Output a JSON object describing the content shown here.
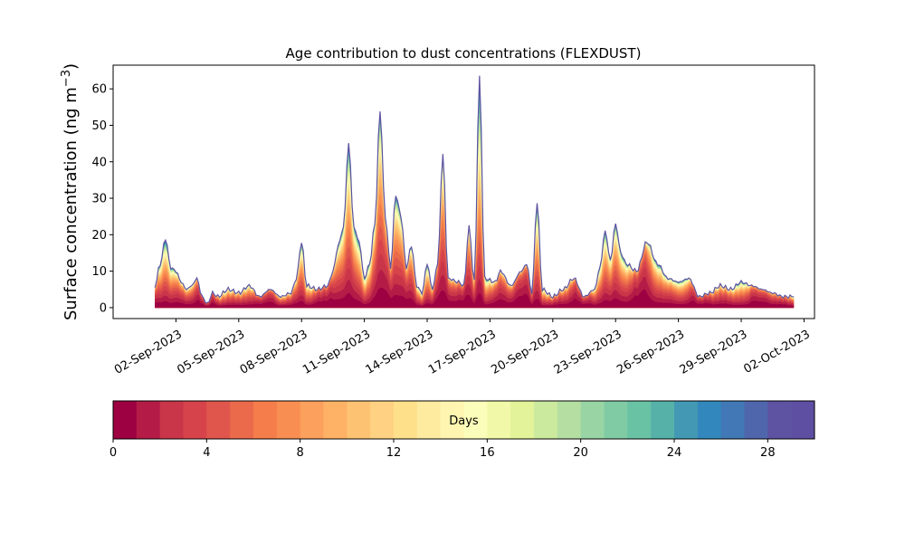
{
  "chart_data": {
    "type": "area",
    "stacked": true,
    "title": "Age contribution to dust concentrations (FLEXDUST)",
    "ylabel": "Surface concentration (ng m⁻³)",
    "xlabel": "",
    "ylim": [
      -3,
      66.5
    ],
    "yticks": [
      0,
      10,
      20,
      30,
      40,
      50,
      60
    ],
    "xlim": [
      "2023-08-30T00:00",
      "2023-10-02T12:00"
    ],
    "xticks": [
      "02-Sep-2023",
      "05-Sep-2023",
      "08-Sep-2023",
      "11-Sep-2023",
      "14-Sep-2023",
      "17-Sep-2023",
      "20-Sep-2023",
      "23-Sep-2023",
      "26-Sep-2023",
      "29-Sep-2023",
      "02-Oct-2023"
    ],
    "grid": false,
    "series_by_age_days": {
      "count": 30,
      "from": 0,
      "to": 30
    },
    "total_concentration": [
      {
        "t": "2023-09-01T00:00",
        "v": 6
      },
      {
        "t": "2023-09-01T06:00",
        "v": 12
      },
      {
        "t": "2023-09-01T12:00",
        "v": 19
      },
      {
        "t": "2023-09-01T18:00",
        "v": 11
      },
      {
        "t": "2023-09-02T00:00",
        "v": 10
      },
      {
        "t": "2023-09-02T06:00",
        "v": 7
      },
      {
        "t": "2023-09-02T12:00",
        "v": 5
      },
      {
        "t": "2023-09-02T18:00",
        "v": 6
      },
      {
        "t": "2023-09-03T00:00",
        "v": 8
      },
      {
        "t": "2023-09-03T06:00",
        "v": 3
      },
      {
        "t": "2023-09-03T12:00",
        "v": 1
      },
      {
        "t": "2023-09-03T18:00",
        "v": 4
      },
      {
        "t": "2023-09-04T00:00",
        "v": 3
      },
      {
        "t": "2023-09-04T12:00",
        "v": 5
      },
      {
        "t": "2023-09-05T00:00",
        "v": 4
      },
      {
        "t": "2023-09-05T12:00",
        "v": 6
      },
      {
        "t": "2023-09-06T00:00",
        "v": 3
      },
      {
        "t": "2023-09-06T12:00",
        "v": 5
      },
      {
        "t": "2023-09-07T00:00",
        "v": 3
      },
      {
        "t": "2023-09-07T12:00",
        "v": 4
      },
      {
        "t": "2023-09-07T18:00",
        "v": 8
      },
      {
        "t": "2023-09-08T00:00",
        "v": 18
      },
      {
        "t": "2023-09-08T06:00",
        "v": 6
      },
      {
        "t": "2023-09-08T18:00",
        "v": 5
      },
      {
        "t": "2023-09-09T06:00",
        "v": 6
      },
      {
        "t": "2023-09-09T12:00",
        "v": 10
      },
      {
        "t": "2023-09-09T18:00",
        "v": 17
      },
      {
        "t": "2023-09-10T00:00",
        "v": 22
      },
      {
        "t": "2023-09-10T06:00",
        "v": 45
      },
      {
        "t": "2023-09-10T12:00",
        "v": 22
      },
      {
        "t": "2023-09-10T18:00",
        "v": 18
      },
      {
        "t": "2023-09-11T00:00",
        "v": 8
      },
      {
        "t": "2023-09-11T06:00",
        "v": 12
      },
      {
        "t": "2023-09-11T12:00",
        "v": 23
      },
      {
        "t": "2023-09-11T18:00",
        "v": 54
      },
      {
        "t": "2023-09-12T00:00",
        "v": 25
      },
      {
        "t": "2023-09-12T06:00",
        "v": 11
      },
      {
        "t": "2023-09-12T12:00",
        "v": 31
      },
      {
        "t": "2023-09-12T18:00",
        "v": 25
      },
      {
        "t": "2023-09-13T00:00",
        "v": 11
      },
      {
        "t": "2023-09-13T06:00",
        "v": 17
      },
      {
        "t": "2023-09-13T12:00",
        "v": 6
      },
      {
        "t": "2023-09-13T18:00",
        "v": 4
      },
      {
        "t": "2023-09-14T00:00",
        "v": 12
      },
      {
        "t": "2023-09-14T06:00",
        "v": 5
      },
      {
        "t": "2023-09-14T12:00",
        "v": 12
      },
      {
        "t": "2023-09-14T18:00",
        "v": 42
      },
      {
        "t": "2023-09-15T00:00",
        "v": 8
      },
      {
        "t": "2023-09-15T12:00",
        "v": 7
      },
      {
        "t": "2023-09-15T18:00",
        "v": 6
      },
      {
        "t": "2023-09-16T00:00",
        "v": 22
      },
      {
        "t": "2023-09-16T06:00",
        "v": 7
      },
      {
        "t": "2023-09-16T12:00",
        "v": 63
      },
      {
        "t": "2023-09-16T18:00",
        "v": 8
      },
      {
        "t": "2023-09-17T06:00",
        "v": 7
      },
      {
        "t": "2023-09-17T12:00",
        "v": 10
      },
      {
        "t": "2023-09-18T00:00",
        "v": 6
      },
      {
        "t": "2023-09-18T12:00",
        "v": 10
      },
      {
        "t": "2023-09-18T18:00",
        "v": 12
      },
      {
        "t": "2023-09-19T00:00",
        "v": 4
      },
      {
        "t": "2023-09-19T06:00",
        "v": 29
      },
      {
        "t": "2023-09-19T12:00",
        "v": 5
      },
      {
        "t": "2023-09-20T00:00",
        "v": 3
      },
      {
        "t": "2023-09-20T12:00",
        "v": 5
      },
      {
        "t": "2023-09-21T00:00",
        "v": 8
      },
      {
        "t": "2023-09-21T12:00",
        "v": 3
      },
      {
        "t": "2023-09-22T00:00",
        "v": 5
      },
      {
        "t": "2023-09-22T06:00",
        "v": 11
      },
      {
        "t": "2023-09-22T12:00",
        "v": 21
      },
      {
        "t": "2023-09-22T18:00",
        "v": 13
      },
      {
        "t": "2023-09-23T00:00",
        "v": 23
      },
      {
        "t": "2023-09-23T06:00",
        "v": 15
      },
      {
        "t": "2023-09-23T12:00",
        "v": 12
      },
      {
        "t": "2023-09-24T00:00",
        "v": 10
      },
      {
        "t": "2023-09-24T12:00",
        "v": 18
      },
      {
        "t": "2023-09-25T00:00",
        "v": 12
      },
      {
        "t": "2023-09-25T12:00",
        "v": 8
      },
      {
        "t": "2023-09-26T00:00",
        "v": 7
      },
      {
        "t": "2023-09-26T12:00",
        "v": 8
      },
      {
        "t": "2023-09-27T00:00",
        "v": 3
      },
      {
        "t": "2023-09-27T12:00",
        "v": 4
      },
      {
        "t": "2023-09-28T00:00",
        "v": 6
      },
      {
        "t": "2023-09-28T12:00",
        "v": 5
      },
      {
        "t": "2023-09-29T00:00",
        "v": 7
      },
      {
        "t": "2023-09-29T12:00",
        "v": 6
      },
      {
        "t": "2023-09-30T00:00",
        "v": 5
      },
      {
        "t": "2023-09-30T12:00",
        "v": 4
      },
      {
        "t": "2023-10-01T00:00",
        "v": 3
      },
      {
        "t": "2023-10-01T12:00",
        "v": 3
      }
    ],
    "colorbar": {
      "label": "Days",
      "min": 0,
      "max": 30,
      "bins": 30,
      "ticks": [
        0,
        4,
        8,
        12,
        16,
        20,
        24,
        28
      ],
      "colormap": [
        "#9e0142",
        "#b41c47",
        "#c93549",
        "#d7434b",
        "#e0564c",
        "#ea6a4b",
        "#f47d4b",
        "#f98e52",
        "#fca05d",
        "#fdb265",
        "#fdc372",
        "#fed282",
        "#fee08b",
        "#feeba0",
        "#fff5b0",
        "#fbfdba",
        "#f1f9a9",
        "#e2f399",
        "#ccea9e",
        "#b5dfa2",
        "#99d5a4",
        "#80cba4",
        "#6ac2a5",
        "#56b1a8",
        "#4399b3",
        "#3288bd",
        "#4178b5",
        "#5066ac",
        "#5d53a2",
        "#5e4fa2"
      ]
    }
  }
}
